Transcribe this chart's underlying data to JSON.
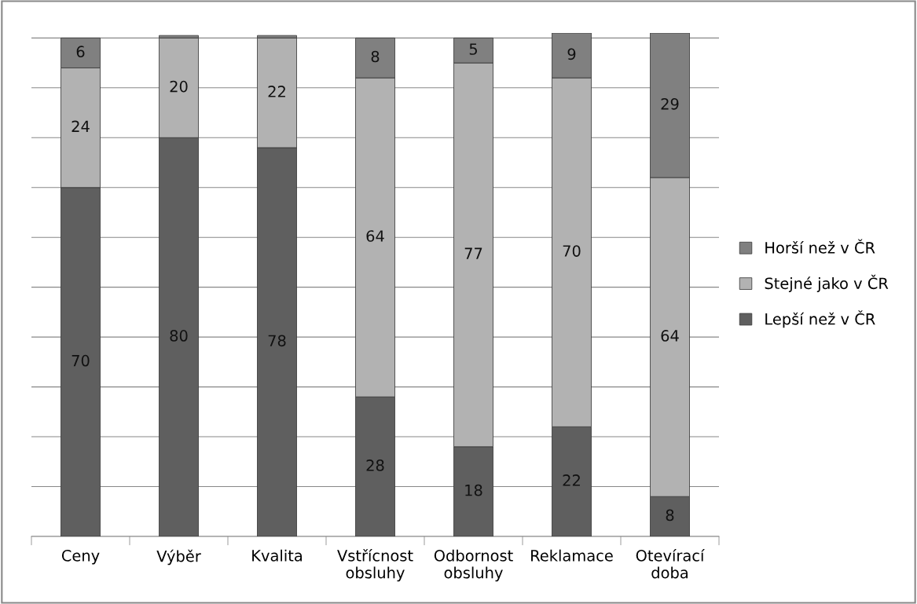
{
  "chart_data": {
    "type": "bar",
    "stacked": true,
    "categories": [
      "Ceny",
      "Výběr",
      "Kvalita",
      "Vstřícnost\nobsluhy",
      "Odbornost\nobsluhy",
      "Reklamace",
      "Otevírací\ndoba"
    ],
    "series": [
      {
        "name": "Lepší než v ČR",
        "color": "#5f5f5f",
        "values": [
          70,
          80,
          78,
          28,
          18,
          22,
          8
        ],
        "value_labels": [
          "70",
          "80",
          "78",
          "28",
          "18",
          "22",
          "8"
        ]
      },
      {
        "name": "Stejné jako v ČR",
        "color": "#b2b2b2",
        "values": [
          24,
          20,
          22,
          64,
          77,
          70,
          64
        ],
        "value_labels": [
          "24",
          "20",
          "22",
          "64",
          "77",
          "70",
          "64"
        ]
      },
      {
        "name": "Horší než v ČR",
        "color": "#808080",
        "values": [
          6,
          0.5,
          0.5,
          8,
          5,
          9,
          29
        ],
        "value_labels": [
          "6",
          null,
          null,
          "8",
          "5",
          "9",
          "29"
        ]
      }
    ],
    "ylim": [
      0,
      101
    ],
    "yticks": [
      {
        "value": 0,
        "label": null
      },
      {
        "value": 10,
        "label": null
      },
      {
        "value": 20,
        "label": null
      },
      {
        "value": 30,
        "label": null
      },
      {
        "value": 40,
        "label": null
      },
      {
        "value": 50,
        "label": null
      },
      {
        "value": 60,
        "label": null
      },
      {
        "value": 70,
        "label": null
      },
      {
        "value": 80,
        "label": null
      },
      {
        "value": 90,
        "label": null
      },
      {
        "value": 100,
        "label": null
      }
    ],
    "grid": "y",
    "legend": "right",
    "tick_labels": "x"
  }
}
